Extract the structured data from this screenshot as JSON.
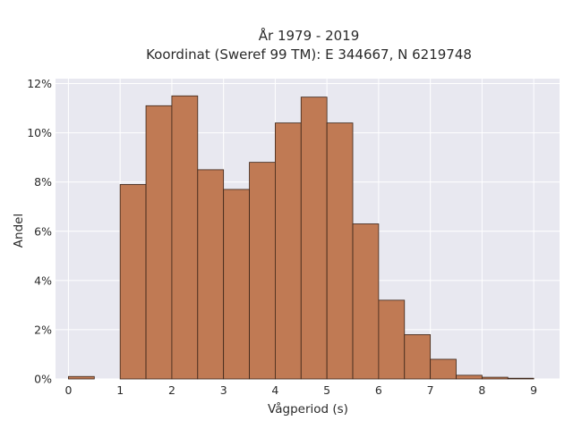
{
  "chart_data": {
    "type": "bar",
    "title": "År 1979 - 2019",
    "subtitle": "Koordinat (Sweref 99 TM): E 344667, N 6219748",
    "xlabel": "Vågperiod (s)",
    "ylabel": "Andel",
    "x_ticks": [
      "0",
      "1",
      "2",
      "3",
      "4",
      "5",
      "6",
      "7",
      "8",
      "9"
    ],
    "y_ticks": [
      "0%",
      "2%",
      "4%",
      "6%",
      "8%",
      "10%",
      "12%"
    ],
    "xlim": [
      -0.25,
      9.5
    ],
    "ylim": [
      0,
      12.2
    ],
    "bin_width": 0.5,
    "bins": [
      {
        "x0": 0.0,
        "value": 0.1
      },
      {
        "x0": 1.0,
        "value": 7.9
      },
      {
        "x0": 1.5,
        "value": 11.1
      },
      {
        "x0": 2.0,
        "value": 11.5
      },
      {
        "x0": 2.5,
        "value": 8.5
      },
      {
        "x0": 3.0,
        "value": 7.7
      },
      {
        "x0": 3.5,
        "value": 8.8
      },
      {
        "x0": 4.0,
        "value": 10.4
      },
      {
        "x0": 4.5,
        "value": 11.45
      },
      {
        "x0": 5.0,
        "value": 10.4
      },
      {
        "x0": 5.5,
        "value": 6.3
      },
      {
        "x0": 6.0,
        "value": 3.2
      },
      {
        "x0": 6.5,
        "value": 1.8
      },
      {
        "x0": 7.0,
        "value": 0.8
      },
      {
        "x0": 7.5,
        "value": 0.15
      },
      {
        "x0": 8.0,
        "value": 0.07
      },
      {
        "x0": 8.5,
        "value": 0.03
      }
    ],
    "grid": true,
    "colors": {
      "bar_fill": "#c07a54",
      "bar_edge": "#3a2418",
      "plot_background": "#e8e8f0",
      "grid": "#ffffff"
    }
  }
}
